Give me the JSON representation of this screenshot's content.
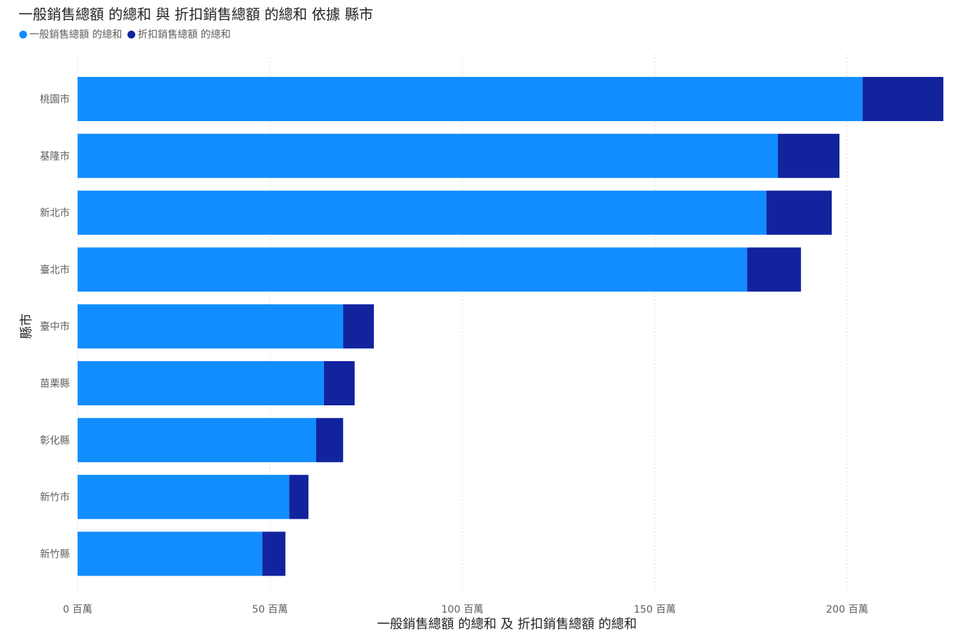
{
  "chart_data": {
    "type": "bar",
    "orientation": "horizontal",
    "stacked": true,
    "title": "一般銷售總額 的總和 與 折扣銷售總額 的總和 依據 縣市",
    "xlabel": "一般銷售總額 的總和 及 折扣銷售總額 的總和",
    "ylabel": "縣市",
    "categories": [
      "桃園市",
      "基隆市",
      "新北市",
      "臺北市",
      "臺中市",
      "苗栗縣",
      "彰化縣",
      "新竹市",
      "新竹縣"
    ],
    "series": [
      {
        "name": "一般銷售總額 的總和",
        "color": "#118dff",
        "values": [
          204,
          182,
          179,
          174,
          69,
          64,
          62,
          55,
          48
        ]
      },
      {
        "name": "折扣銷售總額 的總和",
        "color": "#12239e",
        "values": [
          21,
          16,
          17,
          14,
          8,
          8,
          7,
          5,
          6
        ]
      }
    ],
    "xlim": [
      0,
      223
    ],
    "xticks": [
      0,
      50,
      100,
      150,
      200
    ],
    "xtick_labels": [
      "0 百萬",
      "50 百萬",
      "100 百萬",
      "150 百萬",
      "200 百萬"
    ],
    "grid": "vertical-dotted",
    "legend_position": "top-left"
  }
}
